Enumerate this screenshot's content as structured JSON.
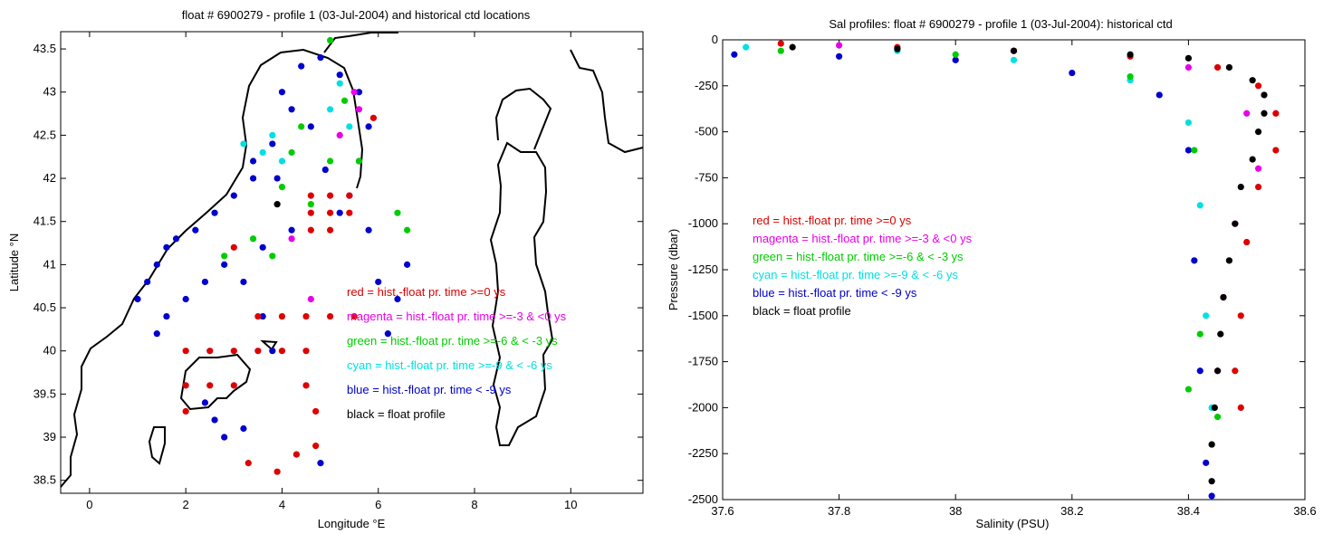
{
  "chart_data": [
    {
      "type": "scatter",
      "title": "float # 6900279 - profile 1 (03-Jul-2004) and historical ctd locations",
      "xlabel": "Longitude °E",
      "ylabel": "Latitude °N",
      "xlim": [
        -0.6,
        11.5
      ],
      "ylim": [
        38.35,
        43.7
      ],
      "xticks": [
        0,
        2,
        4,
        6,
        8,
        10
      ],
      "yticks": [
        38.5,
        39,
        39.5,
        40,
        40.5,
        41,
        41.5,
        42,
        42.5,
        43,
        43.5
      ],
      "grid": false,
      "legend": [
        {
          "label": "red = hist.-float pr. time >=0 ys",
          "color": "#dd0000"
        },
        {
          "label": "magenta = hist.-float pr. time >=-3 & <0 ys",
          "color": "#e800e8"
        },
        {
          "label": "green = hist.-float pr. time >=-6 & < -3 ys",
          "color": "#00cc00"
        },
        {
          "label": "cyan = hist.-float pr. time >=-9 & < -6 ys",
          "color": "#00e0e0"
        },
        {
          "label": "blue = hist.-float pr. time < -9 ys",
          "color": "#0000cc"
        },
        {
          "label": "black = float profile",
          "color": "#000000"
        }
      ],
      "legend_placement": "lower-right",
      "series": [
        {
          "color": "#0000cc",
          "points": [
            [
              1.0,
              40.6
            ],
            [
              1.2,
              40.8
            ],
            [
              1.4,
              41.0
            ],
            [
              1.6,
              41.2
            ],
            [
              1.8,
              41.3
            ],
            [
              2.2,
              41.4
            ],
            [
              2.6,
              41.6
            ],
            [
              3.0,
              41.8
            ],
            [
              3.4,
              42.0
            ],
            [
              3.8,
              42.4
            ],
            [
              4.2,
              42.8
            ],
            [
              4.0,
              43.0
            ],
            [
              4.4,
              43.3
            ],
            [
              4.8,
              43.4
            ],
            [
              5.2,
              43.2
            ],
            [
              5.6,
              43.0
            ],
            [
              5.8,
              42.6
            ],
            [
              5.6,
              42.2
            ],
            [
              5.4,
              41.8
            ],
            [
              5.8,
              41.4
            ],
            [
              6.0,
              40.8
            ],
            [
              6.2,
              40.2
            ],
            [
              6.4,
              40.6
            ],
            [
              6.6,
              41.0
            ],
            [
              1.4,
              40.2
            ],
            [
              1.6,
              40.4
            ],
            [
              2.0,
              40.6
            ],
            [
              2.4,
              40.8
            ],
            [
              2.8,
              41.0
            ],
            [
              3.2,
              40.8
            ],
            [
              3.6,
              40.4
            ],
            [
              3.8,
              40.0
            ],
            [
              2.4,
              39.4
            ],
            [
              2.6,
              39.2
            ],
            [
              2.8,
              39.0
            ],
            [
              3.2,
              39.1
            ],
            [
              4.8,
              38.7
            ],
            [
              4.6,
              42.6
            ],
            [
              4.9,
              42.1
            ],
            [
              5.2,
              41.6
            ],
            [
              4.2,
              41.4
            ],
            [
              3.6,
              41.2
            ],
            [
              3.9,
              42.0
            ],
            [
              3.4,
              42.2
            ]
          ]
        },
        {
          "color": "#00e0e0",
          "points": [
            [
              3.2,
              42.4
            ],
            [
              3.6,
              42.3
            ],
            [
              4.0,
              42.2
            ],
            [
              5.0,
              42.8
            ],
            [
              5.4,
              42.6
            ],
            [
              5.2,
              43.1
            ],
            [
              3.8,
              42.5
            ]
          ]
        },
        {
          "color": "#00cc00",
          "points": [
            [
              4.0,
              41.9
            ],
            [
              4.6,
              41.7
            ],
            [
              5.0,
              42.2
            ],
            [
              5.6,
              42.2
            ],
            [
              6.4,
              41.6
            ],
            [
              6.6,
              41.4
            ],
            [
              3.4,
              41.3
            ],
            [
              3.8,
              41.1
            ],
            [
              2.8,
              41.1
            ],
            [
              4.4,
              42.6
            ],
            [
              4.2,
              42.3
            ],
            [
              5.3,
              42.9
            ],
            [
              5.0,
              43.6
            ]
          ]
        },
        {
          "color": "#e800e8",
          "points": [
            [
              4.2,
              41.3
            ],
            [
              4.6,
              40.6
            ],
            [
              5.5,
              43.0
            ],
            [
              5.2,
              42.5
            ],
            [
              5.6,
              42.8
            ]
          ]
        },
        {
          "color": "#dd0000",
          "points": [
            [
              4.6,
              41.8
            ],
            [
              5.0,
              41.8
            ],
            [
              5.4,
              41.8
            ],
            [
              4.6,
              41.6
            ],
            [
              5.0,
              41.6
            ],
            [
              5.4,
              41.6
            ],
            [
              4.6,
              41.4
            ],
            [
              5.0,
              41.4
            ],
            [
              2.0,
              40.0
            ],
            [
              2.5,
              40.0
            ],
            [
              3.0,
              40.0
            ],
            [
              3.5,
              40.0
            ],
            [
              4.0,
              40.0
            ],
            [
              4.5,
              40.0
            ],
            [
              3.5,
              40.4
            ],
            [
              4.0,
              40.4
            ],
            [
              4.5,
              40.4
            ],
            [
              5.0,
              40.4
            ],
            [
              5.5,
              40.4
            ],
            [
              2.0,
              39.6
            ],
            [
              2.5,
              39.6
            ],
            [
              3.0,
              39.6
            ],
            [
              4.5,
              39.6
            ],
            [
              4.7,
              39.3
            ],
            [
              4.7,
              38.9
            ],
            [
              4.3,
              38.8
            ],
            [
              3.3,
              38.7
            ],
            [
              3.9,
              38.6
            ],
            [
              2.0,
              39.3
            ],
            [
              5.9,
              42.7
            ],
            [
              3.0,
              41.2
            ]
          ]
        },
        {
          "color": "#000000",
          "points": [
            [
              3.9,
              41.7
            ]
          ]
        }
      ]
    },
    {
      "type": "scatter",
      "title": "Sal profiles: float # 6900279 - profile 1 (03-Jul-2004): historical ctd",
      "xlabel": "Salinity (PSU)",
      "ylabel": "Pressure (dbar)",
      "xlim": [
        37.6,
        38.6
      ],
      "ylim": [
        -2500,
        0
      ],
      "xticks": [
        37.6,
        37.8,
        38,
        38.2,
        38.4,
        38.6
      ],
      "yticks": [
        0,
        -250,
        -500,
        -750,
        -1000,
        -1250,
        -1500,
        -1750,
        -2000,
        -2250,
        -2500
      ],
      "grid": false,
      "legend": [
        {
          "label": "red = hist.-float pr. time >=0 ys",
          "color": "#dd0000"
        },
        {
          "label": "magenta = hist.-float pr. time >=-3 & <0 ys",
          "color": "#e800e8"
        },
        {
          "label": "green = hist.-float pr. time >=-6 & < -3 ys",
          "color": "#00cc00"
        },
        {
          "label": "cyan = hist.-float pr. time >=-9 & < -6 ys",
          "color": "#00e0e0"
        },
        {
          "label": "blue = hist.-float pr. time < -9 ys",
          "color": "#0000cc"
        },
        {
          "label": "black = float profile",
          "color": "#000000"
        }
      ],
      "legend_placement": "middle-left",
      "series": [
        {
          "color": "#0000cc",
          "points": [
            [
              37.62,
              -80
            ],
            [
              37.8,
              -90
            ],
            [
              38.0,
              -110
            ],
            [
              38.2,
              -180
            ],
            [
              38.35,
              -300
            ],
            [
              38.4,
              -600
            ],
            [
              38.41,
              -1200
            ],
            [
              38.42,
              -1800
            ],
            [
              38.43,
              -2300
            ],
            [
              38.44,
              -2480
            ]
          ]
        },
        {
          "color": "#00e0e0",
          "points": [
            [
              37.64,
              -40
            ],
            [
              37.9,
              -60
            ],
            [
              38.1,
              -110
            ],
            [
              38.3,
              -220
            ],
            [
              38.4,
              -450
            ],
            [
              38.42,
              -900
            ],
            [
              38.43,
              -1500
            ],
            [
              38.44,
              -2000
            ]
          ]
        },
        {
          "color": "#00cc00",
          "points": [
            [
              37.7,
              -60
            ],
            [
              38.0,
              -80
            ],
            [
              38.3,
              -200
            ],
            [
              38.41,
              -600
            ],
            [
              38.42,
              -1600
            ],
            [
              38.4,
              -1900
            ],
            [
              38.45,
              -2050
            ],
            [
              38.44,
              -2200
            ]
          ]
        },
        {
          "color": "#e800e8",
          "points": [
            [
              37.8,
              -30
            ],
            [
              38.1,
              -60
            ],
            [
              38.4,
              -150
            ],
            [
              38.5,
              -400
            ],
            [
              38.52,
              -700
            ],
            [
              38.48,
              -1000
            ],
            [
              38.46,
              -1400
            ],
            [
              38.45,
              -1800
            ]
          ]
        },
        {
          "color": "#dd0000",
          "points": [
            [
              37.7,
              -20
            ],
            [
              37.9,
              -40
            ],
            [
              38.1,
              -60
            ],
            [
              38.3,
              -90
            ],
            [
              38.45,
              -150
            ],
            [
              38.52,
              -250
            ],
            [
              38.55,
              -400
            ],
            [
              38.55,
              -600
            ],
            [
              38.52,
              -800
            ],
            [
              38.5,
              -1100
            ],
            [
              38.49,
              -1500
            ],
            [
              38.48,
              -1800
            ],
            [
              38.49,
              -2000
            ]
          ]
        },
        {
          "color": "#000000",
          "points": [
            [
              37.72,
              -40
            ],
            [
              37.9,
              -50
            ],
            [
              38.1,
              -60
            ],
            [
              38.3,
              -80
            ],
            [
              38.4,
              -100
            ],
            [
              38.47,
              -150
            ],
            [
              38.51,
              -220
            ],
            [
              38.53,
              -300
            ],
            [
              38.53,
              -400
            ],
            [
              38.52,
              -500
            ],
            [
              38.51,
              -650
            ],
            [
              38.49,
              -800
            ],
            [
              38.48,
              -1000
            ],
            [
              38.47,
              -1200
            ],
            [
              38.46,
              -1400
            ],
            [
              38.455,
              -1600
            ],
            [
              38.45,
              -1800
            ],
            [
              38.445,
              -2000
            ],
            [
              38.44,
              -2200
            ],
            [
              38.44,
              -2400
            ]
          ]
        }
      ]
    }
  ]
}
